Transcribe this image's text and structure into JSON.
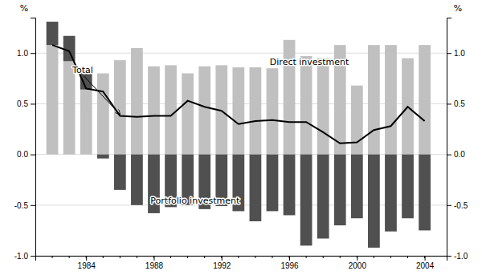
{
  "chart_data": {
    "type": "bar",
    "x": [
      1982,
      1983,
      1984,
      1985,
      1986,
      1987,
      1988,
      1989,
      1990,
      1991,
      1992,
      1993,
      1994,
      1995,
      1996,
      1997,
      1998,
      1999,
      2000,
      2001,
      2002,
      2003,
      2004
    ],
    "xlim": [
      1981.0,
      2005.3
    ],
    "xticks": [
      1984,
      1988,
      1992,
      1996,
      2000,
      2004
    ],
    "ylim": [
      -1.0,
      1.35
    ],
    "yticks": [
      {
        "value": -1.0,
        "label": "-1.0"
      },
      -0.5,
      {
        "value": 0.0,
        "label": "0.0"
      },
      0.5,
      {
        "value": 1.0,
        "label": "1.0"
      }
    ],
    "y2lim": [
      -1.0,
      1.35
    ],
    "y2ticks": [
      {
        "value": -1.0,
        "label": "-1.0"
      },
      -0.5,
      {
        "value": 0.0,
        "label": "0.0"
      },
      0.5,
      {
        "value": 1.0,
        "label": "1.0"
      }
    ],
    "ylabel": "%",
    "y2label": "%",
    "grid": true,
    "stacked": true,
    "series": [
      {
        "name": "Direct investment",
        "type": "bar",
        "color": "#c0c0c0",
        "values": [
          1.08,
          0.92,
          0.64,
          0.8,
          0.93,
          1.05,
          0.87,
          0.88,
          0.8,
          0.87,
          0.88,
          0.86,
          0.86,
          0.85,
          1.13,
          0.97,
          0.95,
          1.08,
          0.68,
          1.08,
          1.08,
          0.95,
          1.08
        ]
      },
      {
        "name": "Portfolio investment",
        "type": "bar",
        "color": "#505050",
        "values": [
          0.23,
          0.25,
          0.2,
          -0.04,
          -0.35,
          -0.5,
          -0.58,
          -0.52,
          -0.5,
          -0.54,
          -0.51,
          -0.56,
          -0.66,
          -0.56,
          -0.6,
          -0.9,
          -0.83,
          -0.7,
          -0.63,
          -0.92,
          -0.76,
          -0.63,
          -0.75
        ]
      },
      {
        "name": "Total",
        "type": "line",
        "color": "#000000",
        "values": [
          1.08,
          1.02,
          0.65,
          0.62,
          0.38,
          0.37,
          0.38,
          0.38,
          0.53,
          0.47,
          0.43,
          0.3,
          0.33,
          0.34,
          0.32,
          0.32,
          0.22,
          0.11,
          0.12,
          0.24,
          0.28,
          0.47,
          0.33
        ]
      }
    ]
  }
}
